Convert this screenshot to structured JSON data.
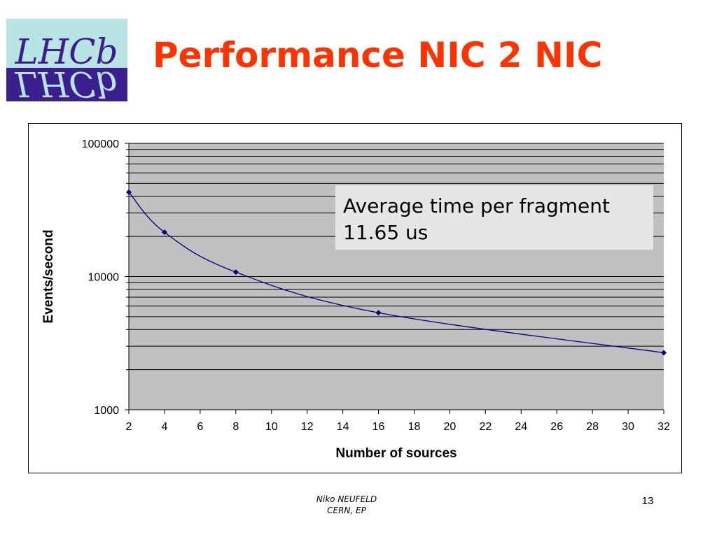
{
  "slide": {
    "title": "Performance NIC 2 NIC",
    "logo_text": "LHCb",
    "footer_name": "Niko NEUFELD",
    "footer_org": "CERN, EP",
    "page_number": "13"
  },
  "colors": {
    "title": "#ff3300",
    "logo_top": "#b8e4e4",
    "logo_bottom": "#3b1f8f",
    "logo_text": "#3b1f8f",
    "plot_background": "#c0c0c0",
    "series_line": "#000080",
    "annotation_box": "#e6e6e6"
  },
  "chart_data": {
    "type": "line",
    "title": "",
    "xlabel": "Number of sources",
    "ylabel": "Events/second",
    "x_ticks": [
      2,
      4,
      6,
      8,
      10,
      12,
      14,
      16,
      18,
      20,
      22,
      24,
      26,
      28,
      30,
      32
    ],
    "xlim": [
      2,
      32
    ],
    "ylim": [
      1000,
      100000
    ],
    "y_scale": "log",
    "y_ticks": [
      1000,
      10000,
      100000
    ],
    "grid": true,
    "legend": "none",
    "series": [
      {
        "x": [
          2,
          4,
          8,
          16,
          32
        ],
        "values": [
          43000,
          21500,
          10800,
          5350,
          2680
        ]
      }
    ],
    "annotation": {
      "lines": [
        "Average time per fragment",
        "11.65 us"
      ],
      "position": "top-right"
    }
  }
}
